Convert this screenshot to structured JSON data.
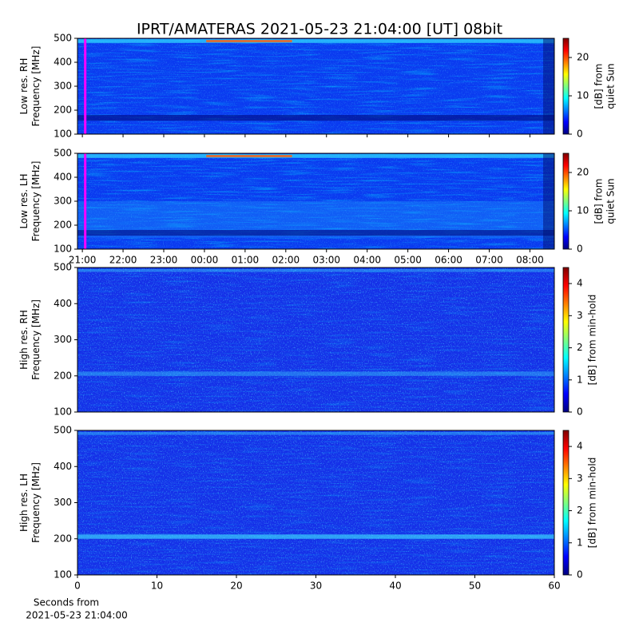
{
  "chart_data": [
    {
      "type": "heatmap",
      "title": "IPRT/AMATERAS 2021-05-23 21:04:00 [UT]   08bit",
      "ylabel": [
        "Low res. RH",
        "Frequency [MHz]"
      ],
      "ylim": [
        100,
        500
      ],
      "yticks": [
        100,
        200,
        300,
        400,
        500
      ],
      "xlim": [
        -0.12,
        11.6
      ],
      "marker_x": 0.07,
      "marker_color": "#ff00ff",
      "colormap": "jet",
      "colorbar_label": [
        "[dB] from",
        "quiet Sun"
      ],
      "clim": [
        0,
        25
      ],
      "cticks": [
        0,
        10,
        20
      ]
    },
    {
      "type": "heatmap",
      "ylabel": [
        "Low res. LH",
        "Frequency [MHz]"
      ],
      "ylim": [
        100,
        500
      ],
      "yticks": [
        100,
        200,
        300,
        400,
        500
      ],
      "xlim": [
        -0.12,
        11.6
      ],
      "xticks": [
        {
          "value": 0,
          "label": "21:00"
        },
        {
          "value": 1,
          "label": "22:00"
        },
        {
          "value": 2,
          "label": "23:00"
        },
        {
          "value": 3,
          "label": "00:00"
        },
        {
          "value": 4,
          "label": "01:00"
        },
        {
          "value": 5,
          "label": "02:00"
        },
        {
          "value": 6,
          "label": "03:00"
        },
        {
          "value": 7,
          "label": "04:00"
        },
        {
          "value": 8,
          "label": "05:00"
        },
        {
          "value": 9,
          "label": "06:00"
        },
        {
          "value": 10,
          "label": "07:00"
        },
        {
          "value": 11,
          "label": "08:00"
        }
      ],
      "marker_x": 0.07,
      "marker_color": "#ff00ff",
      "colormap": "jet",
      "colorbar_label": [
        "[dB] from",
        "quiet Sun"
      ],
      "clim": [
        0,
        25
      ],
      "cticks": [
        0,
        10,
        20
      ]
    },
    {
      "type": "heatmap",
      "ylabel": [
        "High res. RH",
        "Frequency [MHz]"
      ],
      "ylim": [
        100,
        500
      ],
      "yticks": [
        100,
        200,
        300,
        400,
        500
      ],
      "xlim": [
        0,
        60
      ],
      "colormap": "jet",
      "colorbar_label": [
        "[dB] from min-hold"
      ],
      "clim": [
        0,
        4.5
      ],
      "cticks": [
        0,
        1,
        2,
        3,
        4
      ]
    },
    {
      "type": "heatmap",
      "ylabel": [
        "High res. LH",
        "Frequency [MHz]"
      ],
      "ylim": [
        100,
        500
      ],
      "yticks": [
        100,
        200,
        300,
        400,
        500
      ],
      "xlim": [
        0,
        60
      ],
      "xticks": [
        0,
        10,
        20,
        30,
        40,
        50,
        60
      ],
      "xlabel": [
        "Seconds from",
        "2021-05-23 21:04:00"
      ],
      "colormap": "jet",
      "colorbar_label": [
        "[dB] from min-hold"
      ],
      "clim": [
        0,
        4.5
      ],
      "cticks": [
        0,
        1,
        2,
        3,
        4
      ]
    }
  ]
}
